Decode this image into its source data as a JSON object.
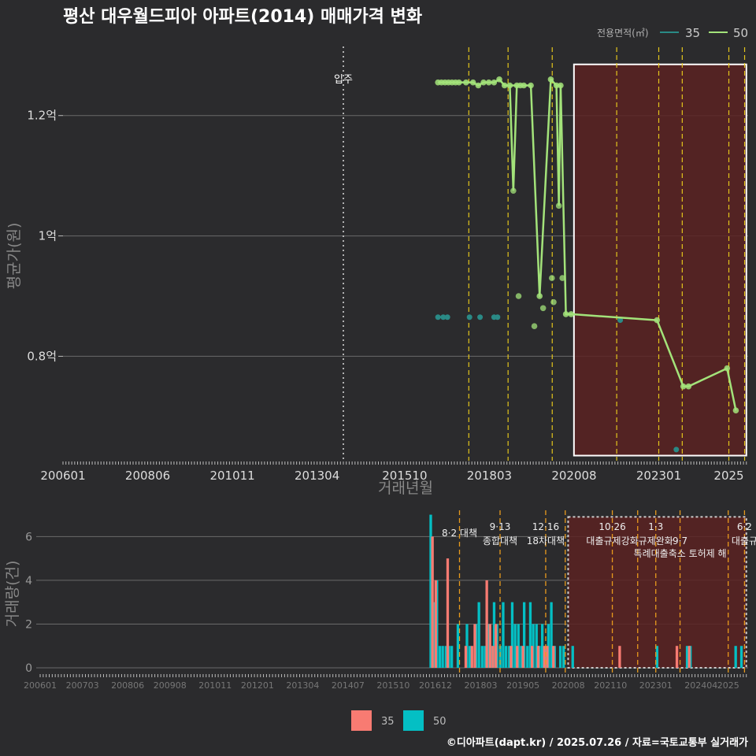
{
  "title": "평산 대우월드피아 아파트(2014) 매매가격 변화",
  "legend_title": "전용면적(㎡)",
  "footer": "©디아파트(dapt.kr) / 2025.07.26 / 자료=국토교통부 실거래가",
  "colors": {
    "s35_line": "#2a8a86",
    "s50_line": "#a3e37a",
    "s35_bar": "#f87b72",
    "s50_bar": "#04bfc4",
    "policy_yellow": "#e3c51c",
    "policy_orange": "#e89a1d",
    "highlight_fill": "#5b2222",
    "highlight_border": "#ffffff"
  },
  "chart_data": [
    {
      "type": "line",
      "ylabel": "평균가(원)",
      "xlabel": "거래년월",
      "x_ticks": [
        "200601",
        "200806",
        "201011",
        "201304",
        "201510",
        "201803",
        "202008",
        "202301",
        "2025"
      ],
      "y_ticks": [
        {
          "v": 0.8,
          "label": "0.8억"
        },
        {
          "v": 1.0,
          "label": "1억"
        },
        {
          "v": 1.2,
          "label": "1.2억"
        }
      ],
      "ylim": [
        0.62,
        1.32
      ],
      "xlim": [
        2006.0,
        2025.55
      ],
      "annotation": {
        "label": "입주",
        "x": 2014.0
      },
      "highlight_x": [
        2020.58,
        2025.5
      ],
      "policy_lines_yellow": [
        2017.58,
        2018.7,
        2019.96,
        2021.8,
        2023.0,
        2023.67,
        2025.0,
        2025.45
      ],
      "series": [
        {
          "name": "35",
          "values": [
            [
              2016.7,
              0.865
            ],
            [
              2016.85,
              0.865
            ],
            [
              2016.97,
              0.865
            ],
            [
              2017.6,
              0.865
            ],
            [
              2017.9,
              0.865
            ],
            [
              2018.3,
              0.865
            ],
            [
              2018.4,
              0.865
            ],
            [
              2021.9,
              0.86
            ],
            [
              2023.5,
              0.645
            ]
          ]
        },
        {
          "name": "50",
          "values": [
            [
              2016.7,
              1.255
            ],
            [
              2016.8,
              1.255
            ],
            [
              2016.9,
              1.255
            ],
            [
              2017.0,
              1.255
            ],
            [
              2017.1,
              1.255
            ],
            [
              2017.2,
              1.255
            ],
            [
              2017.3,
              1.255
            ],
            [
              2017.5,
              1.255
            ],
            [
              2017.7,
              1.255
            ],
            [
              2017.85,
              1.25
            ],
            [
              2018.0,
              1.255
            ],
            [
              2018.15,
              1.255
            ],
            [
              2018.3,
              1.255
            ],
            [
              2018.45,
              1.26
            ],
            [
              2018.6,
              1.25
            ],
            [
              2018.75,
              1.25
            ],
            [
              2018.95,
              1.25
            ],
            [
              2019.05,
              1.25
            ],
            [
              2019.15,
              1.25
            ],
            [
              2019.35,
              1.25
            ],
            [
              2019.6,
              0.9
            ],
            [
              2019.92,
              1.26
            ],
            [
              2020.08,
              1.25
            ],
            [
              2020.2,
              1.25
            ],
            [
              2020.35,
              0.87
            ],
            [
              2020.5,
              0.87
            ],
            [
              2022.95,
              0.86
            ],
            [
              2023.7,
              0.75
            ],
            [
              2023.85,
              0.75
            ],
            [
              2024.95,
              0.78
            ],
            [
              2025.2,
              0.71
            ]
          ]
        }
      ],
      "extra_points_50": [
        [
          2018.85,
          1.075
        ],
        [
          2019.0,
          0.9
        ],
        [
          2019.45,
          0.85
        ],
        [
          2019.7,
          0.88
        ],
        [
          2020.0,
          0.89
        ],
        [
          2019.95,
          0.93
        ],
        [
          2020.25,
          0.93
        ],
        [
          2020.15,
          1.05
        ]
      ]
    },
    {
      "type": "bar",
      "ylabel": "거래량(건)",
      "x_ticks": [
        "200601",
        "200703",
        "200806",
        "200908",
        "201011",
        "201201",
        "201304",
        "201407",
        "201510",
        "201612",
        "201803",
        "201905",
        "202008",
        "202110",
        "202301",
        "202404",
        "2025"
      ],
      "y_ticks": [
        0,
        2,
        4,
        6
      ],
      "ylim": [
        0,
        7.2
      ],
      "xlim": [
        2006.0,
        2025.55
      ],
      "policy_lines": [
        2017.58,
        2018.7,
        2019.96,
        2020.5,
        2021.8,
        2022.5,
        2023.0,
        2023.67,
        2025.0,
        2025.45
      ],
      "highlight_x": [
        2020.58,
        2025.5
      ],
      "policy_labels": [
        {
          "x": 2017.58,
          "line1": "",
          "line2": "8·2 대책",
          "row": 2
        },
        {
          "x": 2018.7,
          "line1": "9·13",
          "line2": "종합대책",
          "row": 1
        },
        {
          "x": 2019.96,
          "line1": "12·16",
          "line2": "18차대책",
          "row": 1
        },
        {
          "x": 2021.8,
          "line1": "10·26",
          "line2": "대출규제강화",
          "row": 1
        },
        {
          "x": 2023.0,
          "line1": "1·3",
          "line2": "규제완화",
          "row": 1
        },
        {
          "x": 2023.67,
          "line1": "",
          "line2": "9·7",
          "row": 1
        },
        {
          "x": 2023.67,
          "line1": "",
          "line2": "특례대출축소 토허제 해",
          "row": 2
        },
        {
          "x": 2025.45,
          "line1": "6·2",
          "line2": "대출규",
          "row": 1
        }
      ],
      "bars_35": [
        [
          2016.83,
          6
        ],
        [
          2016.92,
          4
        ],
        [
          2017.25,
          5
        ],
        [
          2017.75,
          1
        ],
        [
          2017.92,
          1
        ],
        [
          2018.0,
          2
        ],
        [
          2018.33,
          4
        ],
        [
          2018.42,
          2
        ],
        [
          2018.5,
          1
        ],
        [
          2018.58,
          2
        ],
        [
          2019.0,
          1
        ],
        [
          2019.17,
          1
        ],
        [
          2019.33,
          1
        ],
        [
          2019.58,
          1
        ],
        [
          2019.75,
          1
        ],
        [
          2019.92,
          1
        ],
        [
          2020.0,
          1
        ],
        [
          2020.17,
          1
        ],
        [
          2022.0,
          1
        ],
        [
          2023.58,
          1
        ],
        [
          2023.92,
          1
        ]
      ],
      "bars_50": [
        [
          2016.75,
          7
        ],
        [
          2016.83,
          3
        ],
        [
          2016.92,
          4
        ],
        [
          2017.0,
          1
        ],
        [
          2017.08,
          1
        ],
        [
          2017.17,
          1
        ],
        [
          2017.25,
          1
        ],
        [
          2017.33,
          1
        ],
        [
          2017.5,
          2
        ],
        [
          2017.75,
          2
        ],
        [
          2017.83,
          1
        ],
        [
          2018.0,
          2
        ],
        [
          2018.08,
          3
        ],
        [
          2018.17,
          1
        ],
        [
          2018.25,
          1
        ],
        [
          2018.33,
          2
        ],
        [
          2018.42,
          1
        ],
        [
          2018.5,
          3
        ],
        [
          2018.58,
          2
        ],
        [
          2018.67,
          1
        ],
        [
          2018.75,
          3
        ],
        [
          2018.83,
          1
        ],
        [
          2018.92,
          1
        ],
        [
          2019.0,
          3
        ],
        [
          2019.08,
          2
        ],
        [
          2019.17,
          2
        ],
        [
          2019.25,
          1
        ],
        [
          2019.33,
          3
        ],
        [
          2019.42,
          1
        ],
        [
          2019.5,
          3
        ],
        [
          2019.58,
          2
        ],
        [
          2019.67,
          2
        ],
        [
          2019.75,
          1
        ],
        [
          2019.83,
          2
        ],
        [
          2019.92,
          1
        ],
        [
          2020.0,
          2
        ],
        [
          2020.08,
          3
        ],
        [
          2020.17,
          1
        ],
        [
          2020.33,
          1
        ],
        [
          2020.42,
          1
        ],
        [
          2020.67,
          1
        ],
        [
          2023.0,
          1
        ],
        [
          2023.83,
          1
        ],
        [
          2023.92,
          1
        ],
        [
          2025.17,
          1
        ],
        [
          2025.33,
          1
        ]
      ],
      "legend": [
        "35",
        "50"
      ]
    }
  ]
}
